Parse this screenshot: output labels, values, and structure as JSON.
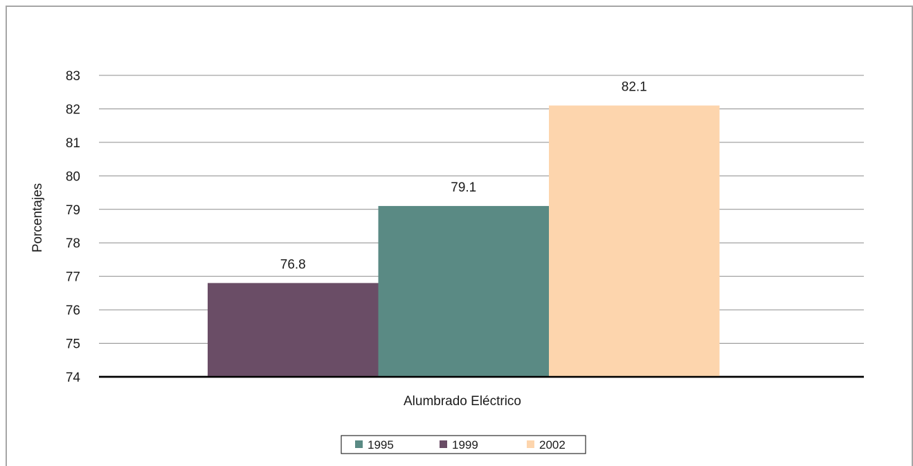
{
  "chart_data": {
    "type": "bar",
    "title": "",
    "xlabel": "Alumbrado Eléctrico",
    "ylabel": "Porcentajes",
    "categories": [
      "Alumbrado Eléctrico"
    ],
    "ylim": [
      74,
      83
    ],
    "yticks": [
      74,
      75,
      76,
      77,
      78,
      79,
      80,
      81,
      82,
      83
    ],
    "grid": true,
    "legend_position": "bottom",
    "bar_order": [
      "1999",
      "1995",
      "2002"
    ],
    "series": [
      {
        "name": "1995",
        "values": [
          79.1
        ],
        "color": "#5a8a84"
      },
      {
        "name": "1999",
        "values": [
          76.8
        ],
        "color": "#6a4d66"
      },
      {
        "name": "2002",
        "values": [
          82.1
        ],
        "color": "#fdd5ad"
      }
    ],
    "data_labels": [
      "76.8",
      "79.1",
      "82.1"
    ],
    "legend": [
      "1995",
      "1999",
      "2002"
    ]
  }
}
